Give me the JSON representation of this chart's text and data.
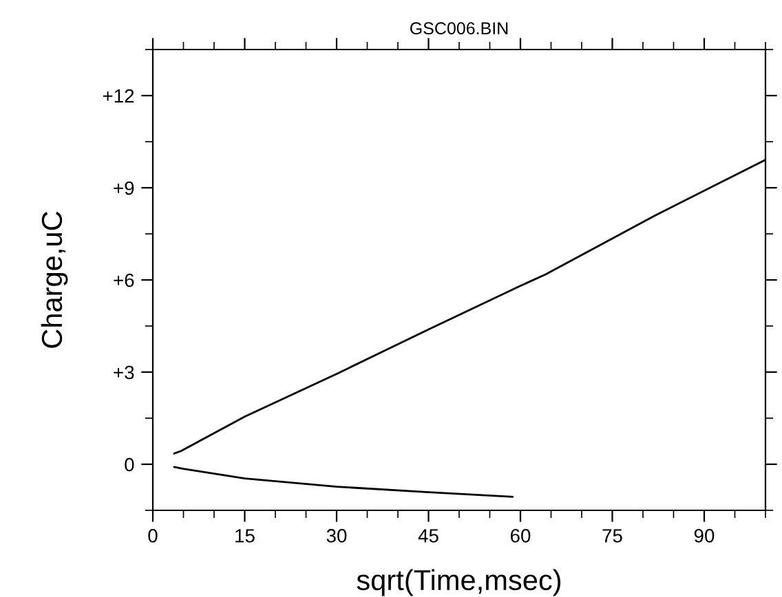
{
  "chart_data": {
    "type": "line",
    "title": "GSC006.BIN",
    "xlabel": "sqrt(Time,msec)",
    "ylabel": "Charge,uC",
    "xlim": [
      0,
      100
    ],
    "xticks": [
      0,
      15,
      30,
      45,
      60,
      75,
      90
    ],
    "ylim": [
      -1.5,
      13.5
    ],
    "yticks": [
      0,
      {
        "value": 3,
        "label": "+3"
      },
      {
        "value": 6,
        "label": "+6"
      },
      {
        "value": 9,
        "label": "+9"
      },
      {
        "value": 12,
        "label": "+12"
      }
    ],
    "grid": false,
    "legend": false,
    "marker": "none",
    "line_style": "solid",
    "series": [
      {
        "color": "#000000",
        "x": [
          3.5,
          4.6,
          15,
          30.4,
          45,
          59.6,
          64.1,
          82,
          100
        ],
        "values": [
          0.35,
          0.43,
          1.55,
          2.98,
          4.39,
          5.77,
          6.18,
          8.1,
          9.91
        ]
      },
      {
        "color": "#000000",
        "x": [
          3.5,
          5,
          15,
          30,
          45,
          58.7
        ],
        "values": [
          -0.09,
          -0.15,
          -0.46,
          -0.73,
          -0.91,
          -1.06
        ]
      }
    ]
  }
}
